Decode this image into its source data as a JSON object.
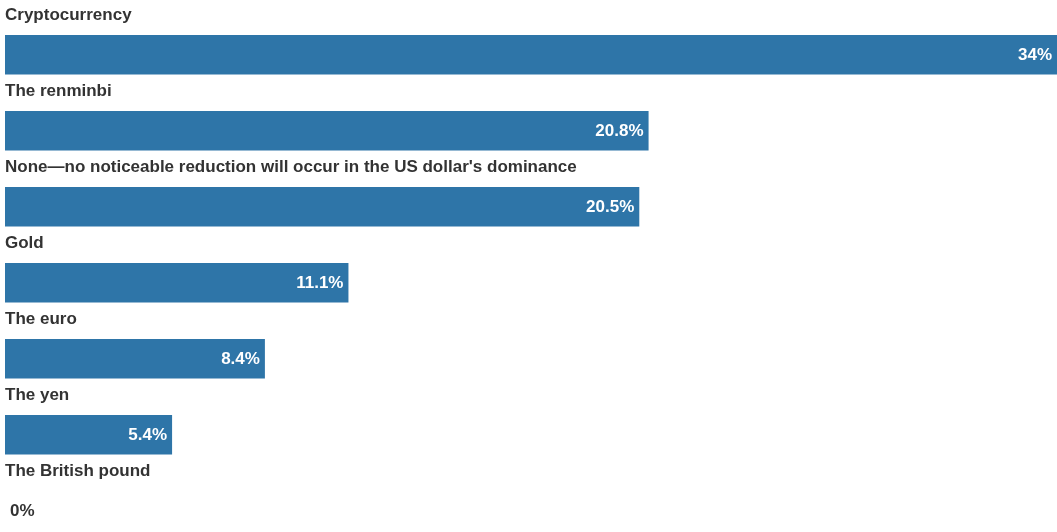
{
  "chart_data": {
    "type": "bar",
    "orientation": "horizontal",
    "categories": [
      "Cryptocurrency",
      "The renminbi",
      "None—no noticeable reduction will occur in the US dollar's dominance",
      "Gold",
      "The euro",
      "The yen",
      "The British pound"
    ],
    "values": [
      34,
      20.8,
      20.5,
      11.1,
      8.4,
      5.4,
      0
    ],
    "value_labels": [
      "34%",
      "20.8%",
      "20.5%",
      "11.1%",
      "8.4%",
      "5.4%",
      "0%"
    ],
    "color": "#2e75a8"
  }
}
